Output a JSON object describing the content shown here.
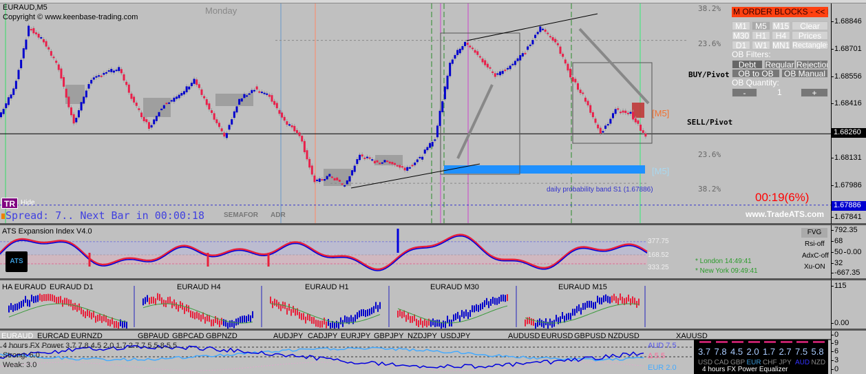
{
  "chart": {
    "symbol": "EURAUD,M5",
    "copyright": "Copyright © www.keenbase-trading.com",
    "day_label": "Monday",
    "fib_levels": [
      "38.2%",
      "23.6%",
      "23.6%",
      "38.2%"
    ],
    "buy_pivot": "BUY/Pivot",
    "sell_pivot": "SELL/Pivot",
    "ob_tag_upper": "[M5]",
    "ob_tag_lower": "[M5]",
    "timer": "00:19(6%)",
    "watermark": "www.TradeATS.com",
    "prob_band": "daily probability band S1 (1.67886)",
    "spread_text": "Spread: 7.. Next Bar in 00:00:18",
    "semafor": "SEMAFOR",
    "adr": "ADR",
    "tr_badge": "TR",
    "hide_label": "Hide",
    "price_axis": [
      "1.68846",
      "1.68701",
      "1.68556",
      "1.68416",
      "1.68131",
      "1.67986",
      "1.67841"
    ],
    "current_price": "1.68260",
    "band_price": "1.67886",
    "close_series": [
      1.68347,
      1.68492,
      1.68817,
      1.68745,
      1.686,
      1.68311,
      1.68528,
      1.68582,
      1.686,
      1.6842,
      1.68293,
      1.6842,
      1.68456,
      1.68546,
      1.68384,
      1.68239,
      1.68438,
      1.68499,
      1.68456,
      1.68329,
      1.68257,
      1.68004,
      1.6804,
      1.67986,
      1.68149,
      1.68113,
      1.68113,
      1.68076,
      1.68131,
      1.68239,
      1.68636,
      1.68745,
      1.68655,
      1.68564,
      1.68618,
      1.68691,
      1.68817,
      1.68745,
      1.68564,
      1.68438,
      1.68257,
      1.68384,
      1.68366,
      1.68239
    ],
    "colors": {
      "bull": "#0000cc",
      "bear": "#e8204a",
      "ob_zone": "#1e90ff"
    }
  },
  "order_blocks_panel": {
    "title": "M ORDER BLOCKS - << HI",
    "timeframes": [
      "M1",
      "M5",
      "M15",
      "M30",
      "H1",
      "H4",
      "D1",
      "W1",
      "MN1"
    ],
    "clear": "Clear",
    "prices": "Prices",
    "rectangles": "Rectangles",
    "filters_label": "OB Filters:",
    "filters": [
      "Debt",
      "Regular",
      "Rejection"
    ],
    "ob_to_ob": "OB to OB",
    "ob_manual": "OB Manual",
    "quantity_label": "OB Quantity:",
    "quantity_value": "1",
    "minus": "-",
    "plus": "+"
  },
  "indicator": {
    "title": "ATS Expansion Index V4.0",
    "logo": "ATS",
    "levels": [
      "377.75",
      "168.52",
      "333.25"
    ],
    "axis": [
      "792.35",
      "68",
      "50",
      "0.00",
      "32",
      "-667.35"
    ],
    "fvg": "FVG",
    "rsi": "Rsi-off",
    "adx": "AdxC-off",
    "xu": "Xu-ON",
    "london": "* London 14:49:41",
    "newyork": "* New York 09:49:41"
  },
  "mini_charts": {
    "labels": [
      "HA EURAUD",
      "EURAUD D1",
      "EURAUD H4",
      "EURAUD H1",
      "EURAUD M30",
      "EURAUD M15"
    ],
    "axis": [
      "115",
      "0.00"
    ]
  },
  "fx_power": {
    "pairs": [
      "EURAUD",
      "EURCAD",
      "EURNZD",
      "GBPAUD",
      "GBPCAD",
      "GBPNZD",
      "AUDJPY",
      "CADJPY",
      "EURJPY",
      "GBPJPY",
      "NZDJPY",
      "USDJPY",
      "AUDUSD",
      "EURUSD",
      "GBPUSD",
      "NZDUSD",
      "XAUUSD"
    ],
    "title": "4 hours FX Power 3.7 7.8 4.5 2.0 1.7 2.7 7.5 5.8 5.5",
    "strong": "Strong: 6.0",
    "weak": "Weak: 3.0",
    "aud_label": "AUD 7.5",
    "delta_label": "Δ 5.5",
    "eur_label": "EUR 2.0",
    "axis": [
      "0",
      "9",
      "6",
      "3",
      "0"
    ],
    "equalizer": {
      "values": [
        "3.7",
        "7.8",
        "4.5",
        "2.0",
        "1.7",
        "2.7",
        "7.5",
        "5.8"
      ],
      "currencies": [
        "USD",
        "CAD",
        "GBP",
        "EUR",
        "CHF",
        "JPY",
        "AUD",
        "NZD"
      ],
      "footer": "4 hours  FX Power  Equalizer"
    }
  }
}
